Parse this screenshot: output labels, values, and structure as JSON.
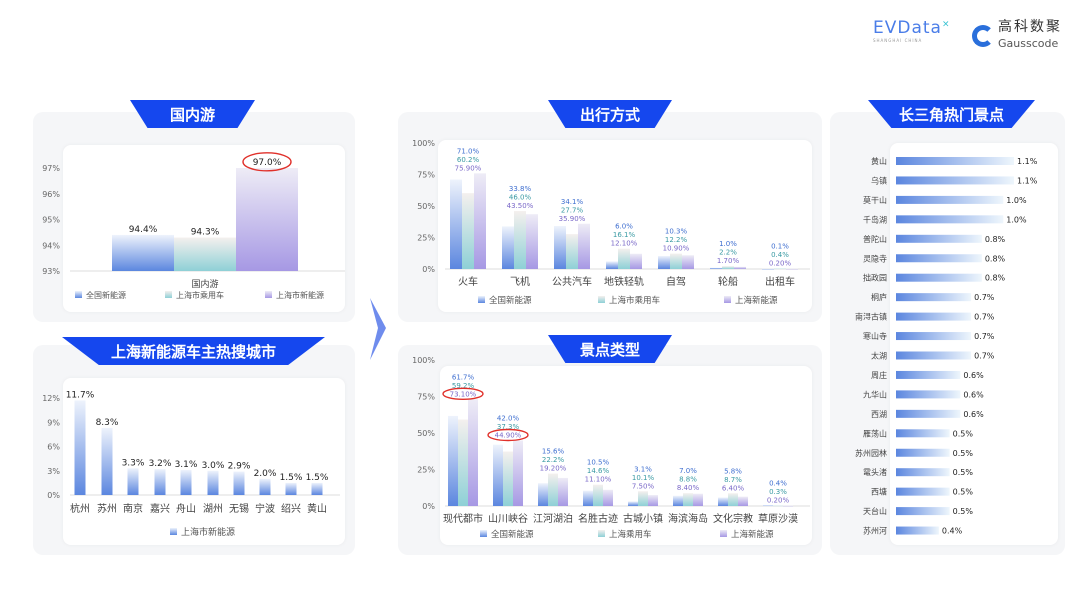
{
  "logos": {
    "evdata": "EVData",
    "evdata_sub": "SHANGHAI CHINA",
    "gauss_cn": "高科数聚",
    "gauss_en": "Gausscode"
  },
  "colors": {
    "banner": "#1547ee",
    "series1": "#5b86df",
    "series2": "#8ed0d6",
    "series3": "#a698e4",
    "highlight": "#e0302a"
  },
  "chart_data": [
    {
      "id": "domestic",
      "type": "bar",
      "title": "国内游",
      "categories": [
        "国内游"
      ],
      "ylim": [
        93,
        97
      ],
      "yticks": [
        93,
        94,
        95,
        96,
        97
      ],
      "unit": "%",
      "series": [
        {
          "name": "全国新能源",
          "values": [
            94.4
          ],
          "labels": [
            "94.4%"
          ]
        },
        {
          "name": "上海市乘用车",
          "values": [
            94.3
          ],
          "labels": [
            "94.3%"
          ]
        },
        {
          "name": "上海市新能源",
          "values": [
            97.0
          ],
          "labels": [
            "97.0%"
          ]
        }
      ],
      "highlight": [
        "97.0%"
      ]
    },
    {
      "id": "cities",
      "type": "bar",
      "title": "上海新能源车主热搜城市",
      "categories": [
        "杭州",
        "苏州",
        "南京",
        "嘉兴",
        "舟山",
        "湖州",
        "无锡",
        "宁波",
        "绍兴",
        "黄山"
      ],
      "ylim": [
        0,
        12
      ],
      "yticks": [
        0,
        3,
        6,
        9,
        12
      ],
      "unit": "%",
      "series": [
        {
          "name": "上海市新能源",
          "values": [
            11.7,
            8.3,
            3.3,
            3.2,
            3.1,
            3.0,
            2.9,
            2.0,
            1.5,
            1.5
          ],
          "labels": [
            "11.7%",
            "8.3%",
            "3.3%",
            "3.2%",
            "3.1%",
            "3.0%",
            "2.9%",
            "2.0%",
            "1.5%",
            "1.5%"
          ]
        }
      ]
    },
    {
      "id": "transport",
      "type": "bar",
      "title": "出行方式",
      "categories": [
        "火车",
        "飞机",
        "公共汽车",
        "地铁轻轨",
        "自驾",
        "轮船",
        "出租车"
      ],
      "ylim": [
        0,
        100
      ],
      "yticks": [
        0,
        25,
        50,
        75,
        100
      ],
      "unit": "%",
      "series": [
        {
          "name": "全国新能源",
          "values": [
            71.0,
            33.8,
            34.1,
            6.0,
            10.3,
            1.0,
            0.1
          ],
          "labels": [
            "71.0%",
            "33.8%",
            "34.1%",
            "6.0%",
            "10.3%",
            "1.0%",
            "0.1%"
          ]
        },
        {
          "name": "上海市乘用车",
          "values": [
            60.2,
            46.0,
            27.7,
            16.1,
            12.2,
            2.2,
            0.4
          ],
          "labels": [
            "60.2%",
            "46.0%",
            "27.7%",
            "16.1%",
            "12.2%",
            "2.2%",
            "0.4%"
          ]
        },
        {
          "name": "上海新能源",
          "values": [
            75.9,
            43.5,
            35.9,
            12.1,
            10.9,
            1.7,
            0.2
          ],
          "labels": [
            "75.90%",
            "43.50%",
            "35.90%",
            "12.10%",
            "10.90%",
            "1.70%",
            "0.20%"
          ]
        }
      ]
    },
    {
      "id": "scenery",
      "type": "bar",
      "title": "景点类型",
      "categories": [
        "现代都市",
        "山川峡谷",
        "江河湖泊",
        "名胜古迹",
        "古城小镇",
        "海滨海岛",
        "文化宗教",
        "草原沙漠"
      ],
      "ylim": [
        0,
        100
      ],
      "yticks": [
        0,
        25,
        50,
        75,
        100
      ],
      "unit": "%",
      "series": [
        {
          "name": "全国新能源",
          "values": [
            61.7,
            42.0,
            15.6,
            10.5,
            3.1,
            7.0,
            5.8,
            0.4
          ],
          "labels": [
            "61.7%",
            "42.0%",
            "15.6%",
            "10.5%",
            "3.1%",
            "7.0%",
            "5.8%",
            "0.4%"
          ]
        },
        {
          "name": "上海乘用车",
          "values": [
            59.2,
            37.3,
            22.2,
            14.6,
            10.1,
            8.8,
            8.7,
            0.3
          ],
          "labels": [
            "59.2%",
            "37.3%",
            "22.2%",
            "14.6%",
            "10.1%",
            "8.8%",
            "8.7%",
            "0.3%"
          ]
        },
        {
          "name": "上海新能源",
          "values": [
            73.1,
            44.9,
            19.2,
            11.1,
            7.5,
            8.4,
            6.4,
            0.2
          ],
          "labels": [
            "73.10%",
            "44.90%",
            "19.20%",
            "11.10%",
            "7.50%",
            "8.40%",
            "6.40%",
            "0.20%"
          ]
        }
      ],
      "highlight": [
        "73.10%",
        "44.90%"
      ]
    },
    {
      "id": "spots",
      "type": "bar",
      "orientation": "horizontal",
      "title": "长三角热门景点",
      "unit": "%",
      "categories": [
        "黄山",
        "乌镇",
        "莫干山",
        "千岛湖",
        "普陀山",
        "灵隐寺",
        "拙政园",
        "桐庐",
        "南浔古镇",
        "寒山寺",
        "太湖",
        "周庄",
        "九华山",
        "西湖",
        "雁荡山",
        "苏州园林",
        "鼋头渚",
        "西塘",
        "天台山",
        "苏州河"
      ],
      "values": [
        1.1,
        1.1,
        1.0,
        1.0,
        0.8,
        0.8,
        0.8,
        0.7,
        0.7,
        0.7,
        0.7,
        0.6,
        0.6,
        0.6,
        0.5,
        0.5,
        0.5,
        0.5,
        0.5,
        0.4
      ],
      "labels": [
        "1.1%",
        "1.1%",
        "1.0%",
        "1.0%",
        "0.8%",
        "0.8%",
        "0.8%",
        "0.7%",
        "0.7%",
        "0.7%",
        "0.7%",
        "0.6%",
        "0.6%",
        "0.6%",
        "0.5%",
        "0.5%",
        "0.5%",
        "0.5%",
        "0.5%",
        "0.4%"
      ]
    }
  ]
}
